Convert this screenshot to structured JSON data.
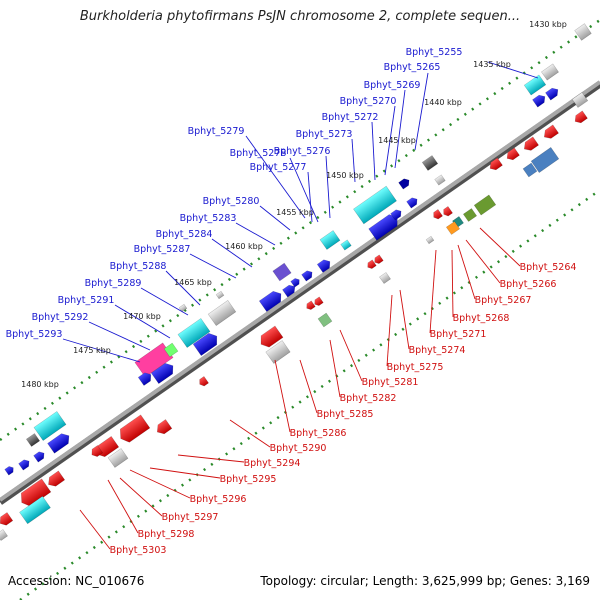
{
  "title": "Burkholderia phytofirmans PsJN chromosome 2, complete sequen...",
  "footer": {
    "accession": "Accession: NC_010676",
    "info": "Topology: circular; Length: 3,625,999 bp; Genes: 3,169"
  },
  "ticks": [
    "1430 kbp",
    "1435 kbp",
    "1440 kbp",
    "1445 kbp",
    "1450 kbp",
    "1455 kbp",
    "1460 kbp",
    "1465 kbp",
    "1470 kbp",
    "1475 kbp",
    "1480 kbp"
  ],
  "genes_forward": [
    "Bphyt_5255",
    "Bphyt_5265",
    "Bphyt_5269",
    "Bphyt_5270",
    "Bphyt_5272",
    "Bphyt_5273",
    "Bphyt_5276",
    "Bphyt_5277",
    "Bphyt_5278",
    "Bphyt_5279",
    "Bphyt_5280",
    "Bphyt_5283",
    "Bphyt_5284",
    "Bphyt_5287",
    "Bphyt_5288",
    "Bphyt_5289",
    "Bphyt_5291",
    "Bphyt_5292",
    "Bphyt_5293"
  ],
  "genes_reverse": [
    "Bphyt_5264",
    "Bphyt_5266",
    "Bphyt_5267",
    "Bphyt_5268",
    "Bphyt_5271",
    "Bphyt_5274",
    "Bphyt_5275",
    "Bphyt_5281",
    "Bphyt_5282",
    "Bphyt_5285",
    "Bphyt_5286",
    "Bphyt_5290",
    "Bphyt_5294",
    "Bphyt_5295",
    "Bphyt_5296",
    "Bphyt_5297",
    "Bphyt_5298",
    "Bphyt_5303"
  ],
  "colors": {
    "forward_label": "#1a1ad0",
    "reverse_label": "#d01010",
    "forward_cds": "#1010d0",
    "reverse_cds": "#e01010",
    "backbone": "#808080",
    "tick_dots": "#2a8a2a"
  }
}
